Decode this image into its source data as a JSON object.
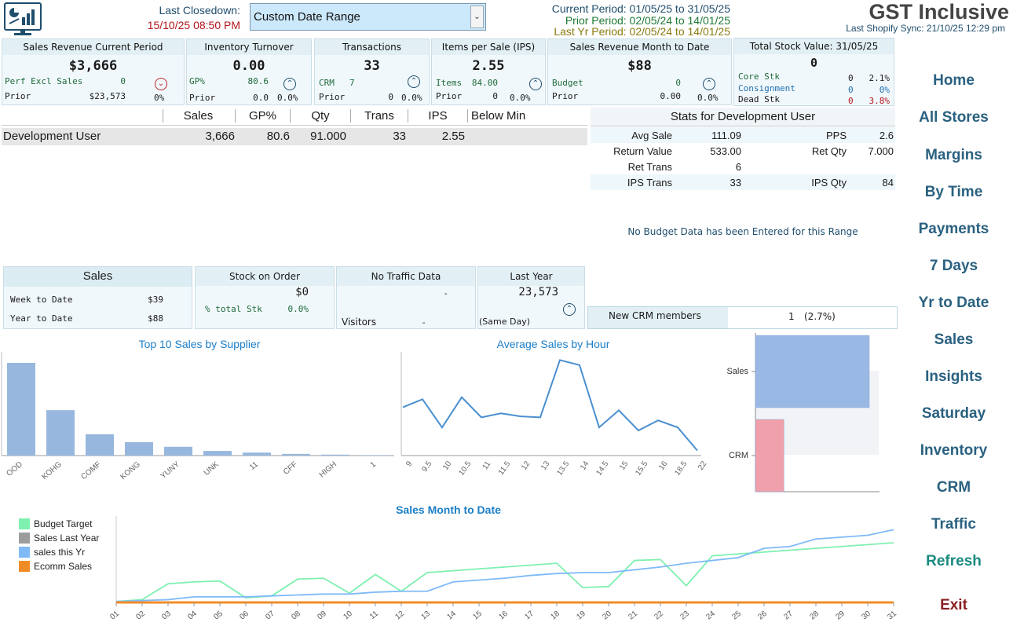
{
  "header": {
    "app_title": "GST Inclusive",
    "last_sync": "Last Shopify Sync: 21/10/25 12:29 pm",
    "last_closedown_label": "Last Closedown:",
    "last_closedown_value": "15/10/25 08:50 PM",
    "date_range_selected": "Custom Date Range",
    "current_period": "Current Period: 01/05/25 to 31/05/25",
    "prior_period": "Prior Period: 02/05/24 to 14/01/25",
    "last_yr_period": "Last Yr Period: 02/05/24 to 14/01/25",
    "colors": {
      "current": "#1f4e6d",
      "prior": "#1e7a35",
      "last_yr": "#8a7a10",
      "closedown": "#b3151c"
    }
  },
  "kpis": {
    "sales_revenue": {
      "title": "Sales Revenue Current Period",
      "value": "$3,666",
      "label1": "Perf Excl Sales",
      "value1": "0",
      "label2": "Prior",
      "value2": "$23,573",
      "pct": "0%",
      "indicator": "down-circle-icon"
    },
    "inventory": {
      "title": "Inventory Turnover",
      "value": "0.00",
      "label1": "GP%",
      "value1": "80.6",
      "label2": "Prior",
      "value2": "0.0",
      "pct": "0.0%",
      "indicator": "up-circle-icon"
    },
    "transactions": {
      "title": "Transactions",
      "value": "33",
      "label1": "CRM",
      "value1": "7",
      "label2": "Prior",
      "value2": "0",
      "pct": "0.0%",
      "indicator": "up-circle-icon"
    },
    "ips": {
      "title": "Items per Sale (IPS)",
      "value": "2.55",
      "label1": "Items",
      "value1": "84.00",
      "label2": "Prior",
      "value2": "0",
      "pct": "0.0%",
      "indicator": "up-circle-icon"
    },
    "mtd": {
      "title": "Sales Revenue Month to Date",
      "value": "$88",
      "label1": "Budget",
      "value1": "0",
      "label2": "Prior",
      "value2": "0.00",
      "pct": "0.0%",
      "indicator": "up-circle-icon"
    },
    "stock": {
      "title": "Total Stock Value: 31/05/25",
      "value": "0",
      "core_label": "Core Stk",
      "core_val": "0",
      "core_pct": "2.1%",
      "consign_label": "Consignment",
      "consign_val": "0",
      "consign_pct": "0%",
      "dead_label": "Dead Stk",
      "dead_val": "0",
      "dead_pct": "3.8%"
    }
  },
  "user_table": {
    "headers": [
      "Sales",
      "GP%",
      "Qty",
      "Trans",
      "IPS",
      "Below Min"
    ],
    "row": {
      "name": "Development User",
      "sales": "3,666",
      "gp": "80.6",
      "qty": "91.000",
      "trans": "33",
      "ips": "2.55",
      "below_min": ""
    }
  },
  "stats": {
    "title": "Stats for Development User",
    "avg_sale_label": "Avg Sale",
    "avg_sale": "111.09",
    "pps_label": "PPS",
    "pps": "2.6",
    "return_value_label": "Return Value",
    "return_value": "533.00",
    "ret_qty_label": "Ret Qty",
    "ret_qty": "7.000",
    "ret_trans_label": "Ret Trans",
    "ret_trans": "6",
    "ips_trans_label": "IPS Trans",
    "ips_trans": "33",
    "ips_qty_label": "IPS Qty",
    "ips_qty": "84",
    "budget_note": "No Budget Data has been Entered for this Range"
  },
  "lower_cards": {
    "sales": {
      "title": "Sales",
      "wtd_label": "Week to Date",
      "wtd": "$39",
      "ytd_label": "Year  to Date",
      "ytd": "$88"
    },
    "stock_order": {
      "title": "Stock on Order",
      "value": "$0",
      "pct_label": "% total Stk",
      "pct": "0.0%"
    },
    "traffic": {
      "title": "No Traffic Data",
      "value": "-",
      "visitors_label": "Visitors",
      "visitors": "-"
    },
    "last_year": {
      "title": "Last Year",
      "value": "23,573",
      "note": "(Same Day)",
      "indicator": "up-circle-icon"
    },
    "crm": {
      "label": "New CRM members",
      "value": "1",
      "pct": "(2.7%)"
    }
  },
  "nav": [
    "Home",
    "All Stores",
    "Margins",
    "By Time",
    "Payments",
    "7 Days",
    "Yr to Date",
    "Sales",
    "Insights",
    "Saturday",
    "Inventory",
    "CRM",
    "Traffic",
    "Refresh",
    "Exit"
  ],
  "chart_data": [
    {
      "type": "bar",
      "title": "Top 10 Sales by Supplier",
      "categories": [
        "OOD",
        "KOHG",
        "COMF",
        "KONG",
        "YUNY",
        "UNK",
        "11",
        "CFF",
        "HIGH",
        "1"
      ],
      "values": [
        1000,
        490,
        230,
        145,
        95,
        50,
        32,
        18,
        10,
        5
      ],
      "color": "#97b7de"
    },
    {
      "type": "line",
      "title": "Average Sales by Hour",
      "x": [
        9,
        9.5,
        10,
        10.5,
        11,
        11.5,
        12,
        13,
        13.5,
        14,
        14.5,
        15,
        15.5,
        16,
        18.5,
        22
      ],
      "xticks": [
        "9",
        "9.5",
        "10",
        "10.5",
        "11",
        "11.5",
        "12",
        "13",
        "13.5",
        "14",
        "14.5",
        "15",
        "15.5",
        "16",
        "18.5",
        "22"
      ],
      "values": [
        48,
        56,
        28,
        58,
        38,
        42,
        39,
        38,
        95,
        90,
        28,
        45,
        25,
        35,
        28,
        5
      ],
      "color": "#4a8fd0"
    },
    {
      "type": "bar",
      "orientation": "horizontal",
      "categories": [
        "Sales",
        "CRM"
      ],
      "values": [
        100,
        25
      ],
      "colors": [
        "#9ab8e4",
        "#efa0aa"
      ]
    },
    {
      "type": "line",
      "title": "Sales Month to Date",
      "categories": [
        "01",
        "02",
        "03",
        "04",
        "05",
        "06",
        "07",
        "08",
        "09",
        "10",
        "11",
        "12",
        "13",
        "14",
        "15",
        "16",
        "17",
        "18",
        "19",
        "20",
        "21",
        "22",
        "23",
        "24",
        "25",
        "26",
        "27",
        "28",
        "29",
        "30",
        "31"
      ],
      "series": [
        {
          "name": "Budget Target",
          "color": "#7ef0b0",
          "values": [
            1,
            3,
            20,
            22,
            23,
            5,
            7,
            25,
            26,
            10,
            30,
            12,
            32,
            34,
            36,
            38,
            40,
            42,
            16,
            17,
            45,
            46,
            18,
            50,
            52,
            54,
            56,
            58,
            60,
            62,
            64
          ]
        },
        {
          "name": "Sales Last Year",
          "color": "#9c9c9c",
          "values": [
            0,
            0,
            0,
            0,
            0,
            0,
            0,
            0,
            0,
            0,
            0,
            0,
            0,
            0,
            0,
            0,
            0,
            0,
            0,
            0,
            0,
            0,
            0,
            0,
            0,
            0,
            0,
            0,
            0,
            0,
            0
          ]
        },
        {
          "name": "sales this Yr",
          "color": "#7fbaf7",
          "values": [
            1,
            2,
            3,
            6,
            6,
            6,
            7,
            8,
            9,
            9,
            11,
            12,
            12,
            22,
            24,
            26,
            29,
            31,
            32,
            32,
            35,
            38,
            42,
            45,
            48,
            58,
            60,
            68,
            70,
            72,
            78
          ]
        },
        {
          "name": "Ecomm Sales",
          "color": "#f08c28",
          "values": [
            0,
            0,
            0,
            0,
            0,
            0,
            0,
            0,
            0,
            0,
            0,
            0,
            0,
            0,
            0,
            0,
            0,
            0,
            0,
            0,
            0,
            0,
            0,
            0,
            0,
            0,
            0,
            0,
            0,
            0,
            0
          ]
        }
      ]
    }
  ]
}
